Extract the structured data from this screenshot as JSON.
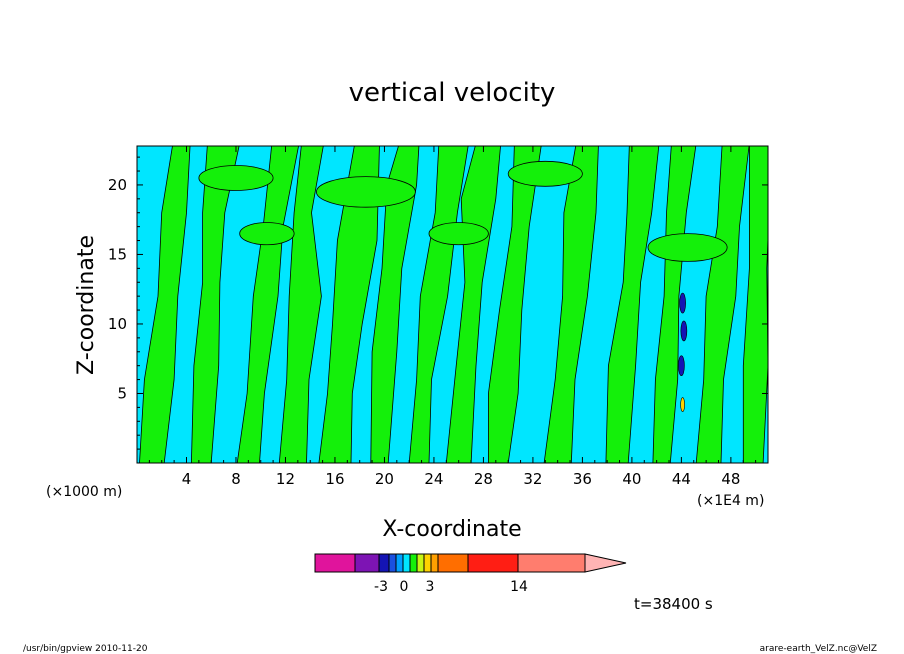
{
  "chart_data": {
    "type": "heatmap",
    "title": "vertical velocity",
    "xlabel": "X-coordinate",
    "ylabel": "Z-coordinate",
    "x_unit_left": "(×1000 m)",
    "x_unit_right": "(×1E4 m)",
    "xticks": [
      4,
      8,
      12,
      16,
      20,
      24,
      28,
      32,
      36,
      40,
      44,
      48
    ],
    "yticks": [
      5,
      10,
      15,
      20
    ],
    "xlim": [
      0,
      51
    ],
    "ylim": [
      0,
      22.8
    ],
    "colorbar": {
      "labels": [
        {
          "text": "-3",
          "value": -3
        },
        {
          "text": "0",
          "value": 0
        },
        {
          "text": "3",
          "value": 3
        },
        {
          "text": "14",
          "value": 14
        }
      ],
      "colors": [
        "#e0149c",
        "#7d14b4",
        "#1414b4",
        "#1a50e0",
        "#00a0ff",
        "#00e6ff",
        "#14f00a",
        "#c8f514",
        "#ffd200",
        "#ffa000",
        "#ff6e00",
        "#ff1e14",
        "#ff7d6e",
        "#ffb4b4"
      ]
    },
    "time_annotation": "t=38400 s"
  },
  "footer": {
    "left": "/usr/bin/gpview   2010-11-20",
    "right": "arare-earth_VelZ.nc@VelZ"
  },
  "colors": {
    "cyan": "#00e6ff",
    "green": "#14f00a",
    "contour": "#000000"
  }
}
